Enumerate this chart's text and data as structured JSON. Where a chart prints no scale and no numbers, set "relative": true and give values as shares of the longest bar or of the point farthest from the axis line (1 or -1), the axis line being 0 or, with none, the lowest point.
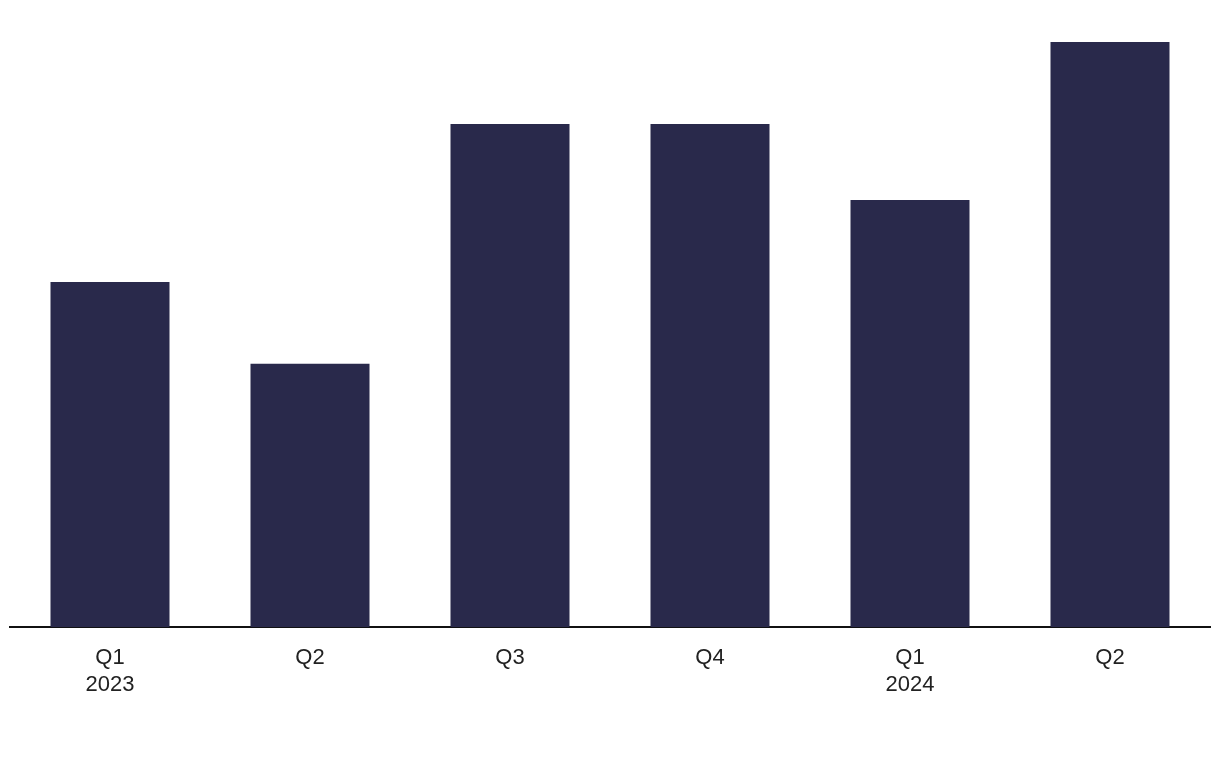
{
  "chart_data": {
    "type": "bar",
    "relative": true,
    "categories": [
      "Q1\n2023",
      "Q2",
      "Q3",
      "Q4",
      "Q1\n2024",
      "Q2"
    ],
    "values": [
      0.59,
      0.45,
      0.86,
      0.86,
      0.73,
      1
    ],
    "color": "#29294b",
    "grid": false,
    "legend": false
  }
}
